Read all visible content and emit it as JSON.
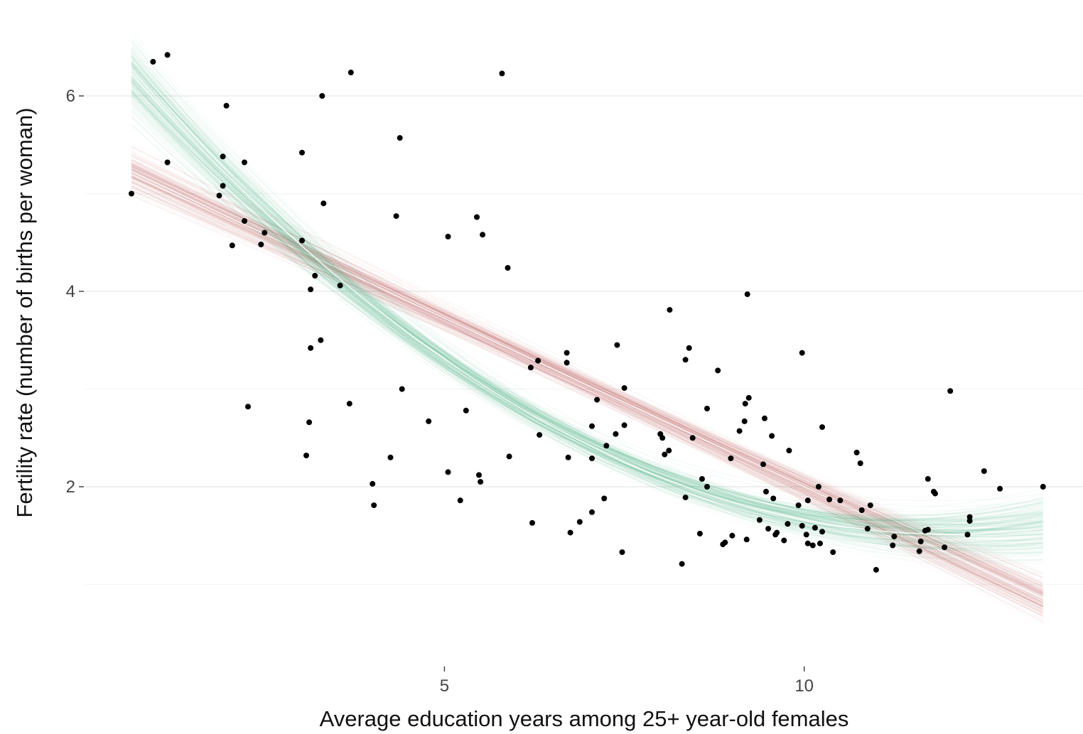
{
  "chart_data": {
    "type": "scatter",
    "title": "",
    "xlabel": "Average education years among 25+ year-old females",
    "ylabel": "Fertility rate (number of births per woman)",
    "xlim": [
      0,
      13.4
    ],
    "ylim": [
      0.3,
      6.7
    ],
    "xticks": [
      5,
      10
    ],
    "yticks": [
      2,
      4,
      6
    ],
    "grid": true,
    "legend": "none",
    "colors": {
      "linear_fit": "#c0504d",
      "quadratic_fit": "#2bab6f",
      "points": "#000000",
      "mean_line": "#ffffff"
    },
    "points": [
      {
        "x": 0.65,
        "y": 5.0
      },
      {
        "x": 0.95,
        "y": 6.35
      },
      {
        "x": 1.15,
        "y": 6.42
      },
      {
        "x": 1.15,
        "y": 5.32
      },
      {
        "x": 1.97,
        "y": 5.9
      },
      {
        "x": 1.92,
        "y": 5.38
      },
      {
        "x": 1.92,
        "y": 5.08
      },
      {
        "x": 1.87,
        "y": 4.98
      },
      {
        "x": 2.22,
        "y": 5.32
      },
      {
        "x": 2.22,
        "y": 4.72
      },
      {
        "x": 2.05,
        "y": 4.47
      },
      {
        "x": 2.5,
        "y": 4.6
      },
      {
        "x": 2.45,
        "y": 4.48
      },
      {
        "x": 2.27,
        "y": 2.82
      },
      {
        "x": 3.02,
        "y": 5.42
      },
      {
        "x": 3.02,
        "y": 4.52
      },
      {
        "x": 3.3,
        "y": 6.0
      },
      {
        "x": 3.32,
        "y": 4.9
      },
      {
        "x": 3.2,
        "y": 4.16
      },
      {
        "x": 3.14,
        "y": 4.02
      },
      {
        "x": 3.14,
        "y": 3.42
      },
      {
        "x": 3.28,
        "y": 3.5
      },
      {
        "x": 3.12,
        "y": 2.66
      },
      {
        "x": 3.08,
        "y": 2.32
      },
      {
        "x": 3.7,
        "y": 6.24
      },
      {
        "x": 3.55,
        "y": 4.06
      },
      {
        "x": 3.68,
        "y": 2.85
      },
      {
        "x": 4.0,
        "y": 2.03
      },
      {
        "x": 4.02,
        "y": 1.81
      },
      {
        "x": 4.25,
        "y": 2.3
      },
      {
        "x": 4.38,
        "y": 5.57
      },
      {
        "x": 4.33,
        "y": 4.77
      },
      {
        "x": 4.41,
        "y": 3.0
      },
      {
        "x": 4.78,
        "y": 2.67
      },
      {
        "x": 5.05,
        "y": 4.56
      },
      {
        "x": 5.05,
        "y": 2.15
      },
      {
        "x": 5.22,
        "y": 1.86
      },
      {
        "x": 5.3,
        "y": 2.78
      },
      {
        "x": 5.45,
        "y": 4.76
      },
      {
        "x": 5.53,
        "y": 4.58
      },
      {
        "x": 5.48,
        "y": 2.12
      },
      {
        "x": 5.5,
        "y": 2.05
      },
      {
        "x": 5.8,
        "y": 6.23
      },
      {
        "x": 5.88,
        "y": 4.24
      },
      {
        "x": 5.9,
        "y": 2.31
      },
      {
        "x": 6.2,
        "y": 3.22
      },
      {
        "x": 6.3,
        "y": 3.29
      },
      {
        "x": 6.32,
        "y": 2.53
      },
      {
        "x": 6.22,
        "y": 1.63
      },
      {
        "x": 6.7,
        "y": 3.37
      },
      {
        "x": 6.7,
        "y": 3.27
      },
      {
        "x": 6.72,
        "y": 2.3
      },
      {
        "x": 6.75,
        "y": 1.53
      },
      {
        "x": 6.88,
        "y": 1.64
      },
      {
        "x": 7.05,
        "y": 2.62
      },
      {
        "x": 7.05,
        "y": 2.29
      },
      {
        "x": 7.05,
        "y": 1.74
      },
      {
        "x": 7.12,
        "y": 2.89
      },
      {
        "x": 7.22,
        "y": 1.88
      },
      {
        "x": 7.25,
        "y": 2.42
      },
      {
        "x": 7.38,
        "y": 2.54
      },
      {
        "x": 7.4,
        "y": 3.45
      },
      {
        "x": 7.47,
        "y": 1.33
      },
      {
        "x": 7.5,
        "y": 3.01
      },
      {
        "x": 7.5,
        "y": 2.63
      },
      {
        "x": 8.0,
        "y": 2.54
      },
      {
        "x": 8.06,
        "y": 2.33
      },
      {
        "x": 8.03,
        "y": 2.5
      },
      {
        "x": 8.12,
        "y": 2.37
      },
      {
        "x": 8.13,
        "y": 3.81
      },
      {
        "x": 8.3,
        "y": 1.21
      },
      {
        "x": 8.35,
        "y": 3.3
      },
      {
        "x": 8.35,
        "y": 1.89
      },
      {
        "x": 8.4,
        "y": 3.42
      },
      {
        "x": 8.45,
        "y": 2.5
      },
      {
        "x": 8.58,
        "y": 2.08
      },
      {
        "x": 8.55,
        "y": 1.52
      },
      {
        "x": 8.65,
        "y": 2.8
      },
      {
        "x": 8.65,
        "y": 2.0
      },
      {
        "x": 8.8,
        "y": 3.19
      },
      {
        "x": 8.87,
        "y": 1.41
      },
      {
        "x": 8.9,
        "y": 1.43
      },
      {
        "x": 8.98,
        "y": 2.29
      },
      {
        "x": 9.0,
        "y": 1.5
      },
      {
        "x": 9.1,
        "y": 2.57
      },
      {
        "x": 9.17,
        "y": 2.67
      },
      {
        "x": 9.18,
        "y": 2.85
      },
      {
        "x": 9.23,
        "y": 2.91
      },
      {
        "x": 9.21,
        "y": 3.97
      },
      {
        "x": 9.2,
        "y": 1.46
      },
      {
        "x": 9.38,
        "y": 1.66
      },
      {
        "x": 9.43,
        "y": 2.23
      },
      {
        "x": 9.45,
        "y": 2.7
      },
      {
        "x": 9.47,
        "y": 1.95
      },
      {
        "x": 9.5,
        "y": 1.57
      },
      {
        "x": 9.55,
        "y": 2.52
      },
      {
        "x": 9.57,
        "y": 1.88
      },
      {
        "x": 9.6,
        "y": 1.51
      },
      {
        "x": 9.62,
        "y": 1.53
      },
      {
        "x": 9.72,
        "y": 1.45
      },
      {
        "x": 9.77,
        "y": 1.62
      },
      {
        "x": 9.79,
        "y": 2.37
      },
      {
        "x": 9.92,
        "y": 1.81
      },
      {
        "x": 9.97,
        "y": 3.37
      },
      {
        "x": 9.97,
        "y": 1.6
      },
      {
        "x": 10.03,
        "y": 1.51
      },
      {
        "x": 10.05,
        "y": 1.42
      },
      {
        "x": 10.12,
        "y": 1.4
      },
      {
        "x": 10.15,
        "y": 1.58
      },
      {
        "x": 10.2,
        "y": 2.0
      },
      {
        "x": 10.22,
        "y": 1.42
      },
      {
        "x": 10.25,
        "y": 1.54
      },
      {
        "x": 10.25,
        "y": 2.61
      },
      {
        "x": 10.05,
        "y": 1.86
      },
      {
        "x": 10.35,
        "y": 1.87
      },
      {
        "x": 10.4,
        "y": 1.33
      },
      {
        "x": 10.5,
        "y": 1.86
      },
      {
        "x": 10.73,
        "y": 2.35
      },
      {
        "x": 10.78,
        "y": 2.24
      },
      {
        "x": 10.8,
        "y": 1.76
      },
      {
        "x": 10.88,
        "y": 1.57
      },
      {
        "x": 10.92,
        "y": 1.81
      },
      {
        "x": 11.0,
        "y": 1.15
      },
      {
        "x": 11.23,
        "y": 1.4
      },
      {
        "x": 11.25,
        "y": 1.49
      },
      {
        "x": 11.6,
        "y": 1.34
      },
      {
        "x": 11.62,
        "y": 1.44
      },
      {
        "x": 11.68,
        "y": 1.55
      },
      {
        "x": 11.72,
        "y": 1.56
      },
      {
        "x": 11.72,
        "y": 2.08
      },
      {
        "x": 11.8,
        "y": 1.95
      },
      {
        "x": 11.82,
        "y": 1.93
      },
      {
        "x": 11.95,
        "y": 1.38
      },
      {
        "x": 12.03,
        "y": 2.98
      },
      {
        "x": 12.27,
        "y": 1.51
      },
      {
        "x": 12.3,
        "y": 1.65
      },
      {
        "x": 12.3,
        "y": 1.69
      },
      {
        "x": 12.5,
        "y": 2.16
      },
      {
        "x": 12.72,
        "y": 1.98
      },
      {
        "x": 13.32,
        "y": 2.0
      }
    ],
    "fits": [
      {
        "kind": "linear",
        "mean": {
          "intercept": 5.45,
          "slope": -0.345
        },
        "x_range": [
          0.65,
          13.32
        ]
      },
      {
        "kind": "quadratic",
        "mean": {
          "c0": 6.78,
          "c1": -0.878,
          "c2": 0.0366
        },
        "x_range": [
          0.65,
          13.32
        ]
      }
    ]
  }
}
